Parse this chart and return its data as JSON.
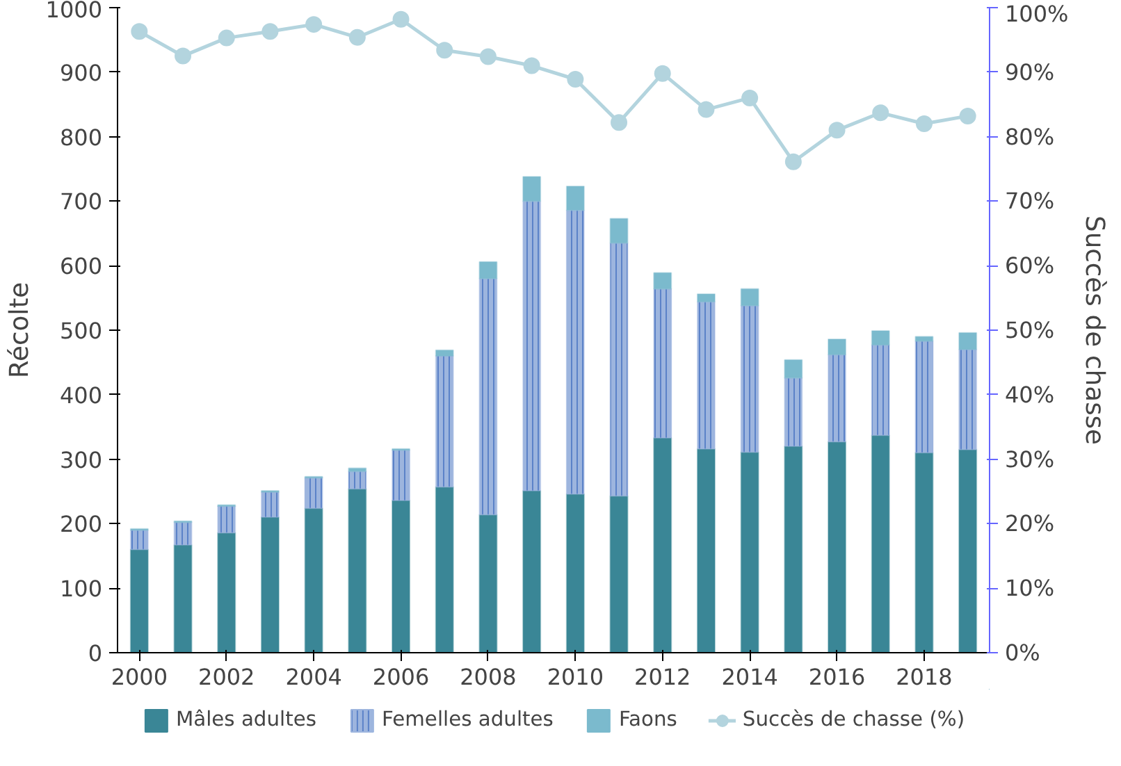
{
  "chart_data": {
    "type": "bar",
    "stacked": true,
    "ylabel": "Récolte",
    "y2label": "Succès de chasse",
    "x": [
      2000,
      2001,
      2002,
      2003,
      2004,
      2005,
      2006,
      2007,
      2008,
      2009,
      2010,
      2011,
      2012,
      2013,
      2014,
      2015,
      2016,
      2017,
      2018,
      2019
    ],
    "xlim": [
      1999.5,
      2019.5
    ],
    "xticks": [
      2000,
      2002,
      2004,
      2006,
      2008,
      2010,
      2012,
      2014,
      2016,
      2018
    ],
    "ylim": [
      0,
      1000
    ],
    "yticks": [
      0,
      100,
      200,
      300,
      400,
      500,
      600,
      700,
      800,
      900,
      1000
    ],
    "y2lim": [
      0,
      100
    ],
    "y2ticks": [
      {
        "value": 0,
        "label": "0%"
      },
      {
        "value": 10,
        "label": "10%"
      },
      {
        "value": 20,
        "label": "20%"
      },
      {
        "value": 30,
        "label": "30%"
      },
      {
        "value": 40,
        "label": "40%"
      },
      {
        "value": 50,
        "label": "50%"
      },
      {
        "value": 60,
        "label": "60%"
      },
      {
        "value": 70,
        "label": "70%"
      },
      {
        "value": 80,
        "label": "80%"
      },
      {
        "value": 90,
        "label": "90%"
      },
      {
        "value": 100,
        "label": "100%"
      }
    ],
    "grid": false,
    "legend": "bottom",
    "series": [
      {
        "name": "Mâles adultes",
        "color": "#3a8696",
        "values": [
          160,
          167,
          186,
          210,
          224,
          254,
          236,
          257,
          214,
          251,
          246,
          243,
          333,
          316,
          311,
          320,
          327,
          337,
          310,
          315
        ]
      },
      {
        "name": "Femelles adultes",
        "color": "#9db5de",
        "values": [
          30,
          35,
          41,
          39,
          47,
          27,
          78,
          203,
          366,
          449,
          440,
          392,
          231,
          228,
          227,
          106,
          135,
          140,
          173,
          155
        ]
      },
      {
        "name": "Faons",
        "color": "#7bbacd",
        "values": [
          2,
          2,
          2,
          2,
          2,
          5,
          2,
          9,
          26,
          38,
          37,
          38,
          25,
          12,
          26,
          28,
          24,
          22,
          7,
          26
        ]
      },
      {
        "name": "Succès de chasse (%)",
        "type": "line",
        "axis": "y2",
        "marker": "circle",
        "color": "#b3d4de",
        "values": [
          96.3,
          92.5,
          95.3,
          96.3,
          97.4,
          95.4,
          98.2,
          93.4,
          92.4,
          91,
          88.9,
          82.2,
          89.8,
          84.2,
          86,
          76.1,
          81,
          83.7,
          82,
          83.2
        ]
      }
    ]
  }
}
